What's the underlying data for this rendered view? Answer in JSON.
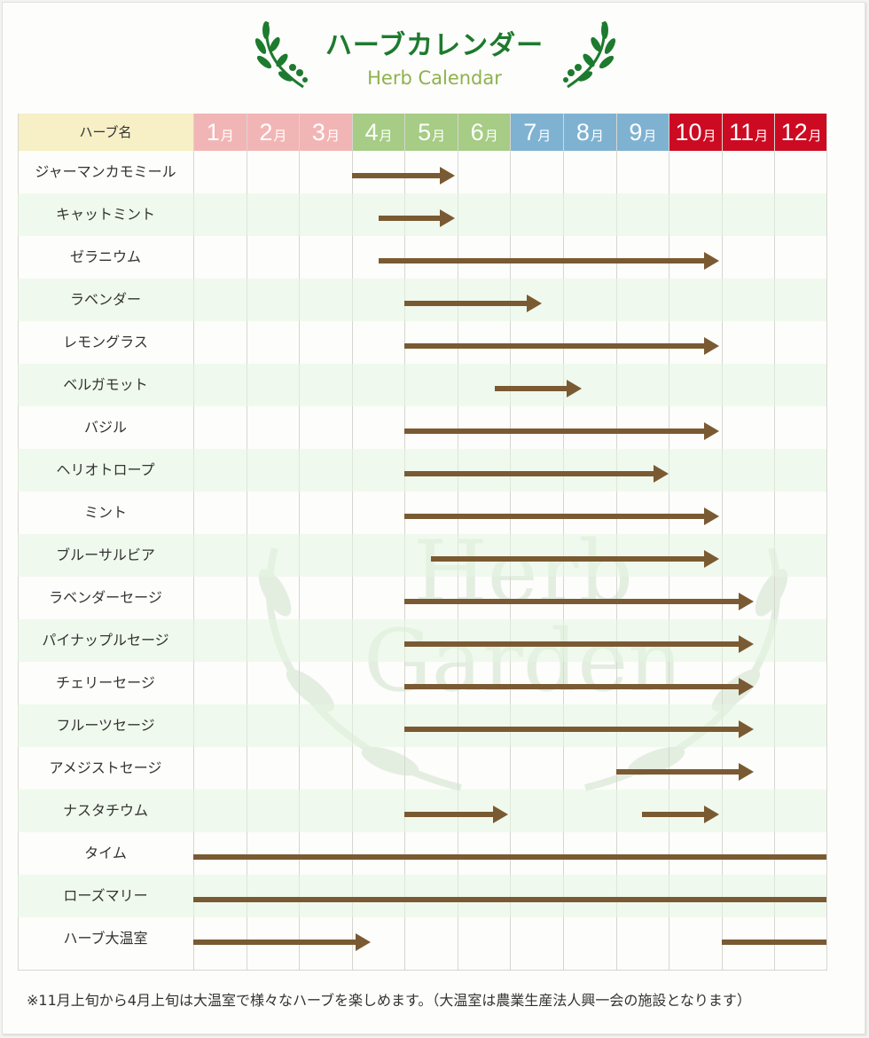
{
  "header": {
    "title": "ハーブカレンダー",
    "subtitle": "Herb Calendar"
  },
  "table": {
    "name_header": "ハーブ名",
    "month_suffix": "月",
    "months": [
      {
        "num": "1",
        "color": "#f2b5b5"
      },
      {
        "num": "2",
        "color": "#f2b5b5"
      },
      {
        "num": "3",
        "color": "#f2b5b5"
      },
      {
        "num": "4",
        "color": "#a6cc85"
      },
      {
        "num": "5",
        "color": "#a6cc85"
      },
      {
        "num": "6",
        "color": "#a6cc85"
      },
      {
        "num": "7",
        "color": "#7fb2d1"
      },
      {
        "num": "8",
        "color": "#7fb2d1"
      },
      {
        "num": "9",
        "color": "#7fb2d1"
      },
      {
        "num": "10",
        "color": "#cc0b22"
      },
      {
        "num": "11",
        "color": "#cc0b22"
      },
      {
        "num": "12",
        "color": "#cc0b22"
      }
    ],
    "herbs": [
      {
        "name": "ジャーマンカモミール",
        "periods": [
          {
            "start": 4.0,
            "end": 5.95,
            "arrow": true
          }
        ]
      },
      {
        "name": "キャットミント",
        "periods": [
          {
            "start": 4.5,
            "end": 5.95,
            "arrow": true
          }
        ]
      },
      {
        "name": "ゼラニウム",
        "periods": [
          {
            "start": 4.5,
            "end": 10.95,
            "arrow": true
          }
        ]
      },
      {
        "name": "ラベンダー",
        "periods": [
          {
            "start": 5.0,
            "end": 7.6,
            "arrow": true
          }
        ]
      },
      {
        "name": "レモングラス",
        "periods": [
          {
            "start": 5.0,
            "end": 10.95,
            "arrow": true
          }
        ]
      },
      {
        "name": "ベルガモット",
        "periods": [
          {
            "start": 6.7,
            "end": 8.35,
            "arrow": true
          }
        ]
      },
      {
        "name": "バジル",
        "periods": [
          {
            "start": 5.0,
            "end": 10.95,
            "arrow": true
          }
        ]
      },
      {
        "name": "ヘリオトロープ",
        "periods": [
          {
            "start": 5.0,
            "end": 10.0,
            "arrow": true
          }
        ]
      },
      {
        "name": "ミント",
        "periods": [
          {
            "start": 5.0,
            "end": 10.95,
            "arrow": true
          }
        ]
      },
      {
        "name": "ブルーサルビア",
        "periods": [
          {
            "start": 5.5,
            "end": 10.95,
            "arrow": true
          }
        ]
      },
      {
        "name": "ラベンダーセージ",
        "periods": [
          {
            "start": 5.0,
            "end": 11.6,
            "arrow": true
          }
        ]
      },
      {
        "name": "パイナップルセージ",
        "periods": [
          {
            "start": 5.0,
            "end": 11.6,
            "arrow": true
          }
        ]
      },
      {
        "name": "チェリーセージ",
        "periods": [
          {
            "start": 5.0,
            "end": 11.6,
            "arrow": true
          }
        ]
      },
      {
        "name": "フルーツセージ",
        "periods": [
          {
            "start": 5.0,
            "end": 11.6,
            "arrow": true
          }
        ]
      },
      {
        "name": "アメジストセージ",
        "periods": [
          {
            "start": 9.0,
            "end": 11.6,
            "arrow": true
          }
        ]
      },
      {
        "name": "ナスタチウム",
        "periods": [
          {
            "start": 5.0,
            "end": 6.95,
            "arrow": true
          },
          {
            "start": 9.5,
            "end": 10.95,
            "arrow": true
          }
        ]
      },
      {
        "name": "タイム",
        "periods": [
          {
            "start": 1.0,
            "end": 13.0,
            "arrow": false
          }
        ]
      },
      {
        "name": "ローズマリー",
        "periods": [
          {
            "start": 1.0,
            "end": 13.0,
            "arrow": false
          }
        ]
      },
      {
        "name": "ハーブ大温室",
        "periods": [
          {
            "start": 1.0,
            "end": 4.35,
            "arrow": true
          },
          {
            "start": 11.0,
            "end": 13.0,
            "arrow": false
          }
        ]
      }
    ]
  },
  "watermark": {
    "line1": "Herb",
    "line2": "Garden"
  },
  "footnote": "※11月上旬から4月上旬は大温室で様々なハーブを楽しめます。（大温室は農業生産法人興一会の施設となります）",
  "colors": {
    "arrow": "#7a5a32",
    "title": "#1d7a2e",
    "subtitle": "#8db24d"
  }
}
